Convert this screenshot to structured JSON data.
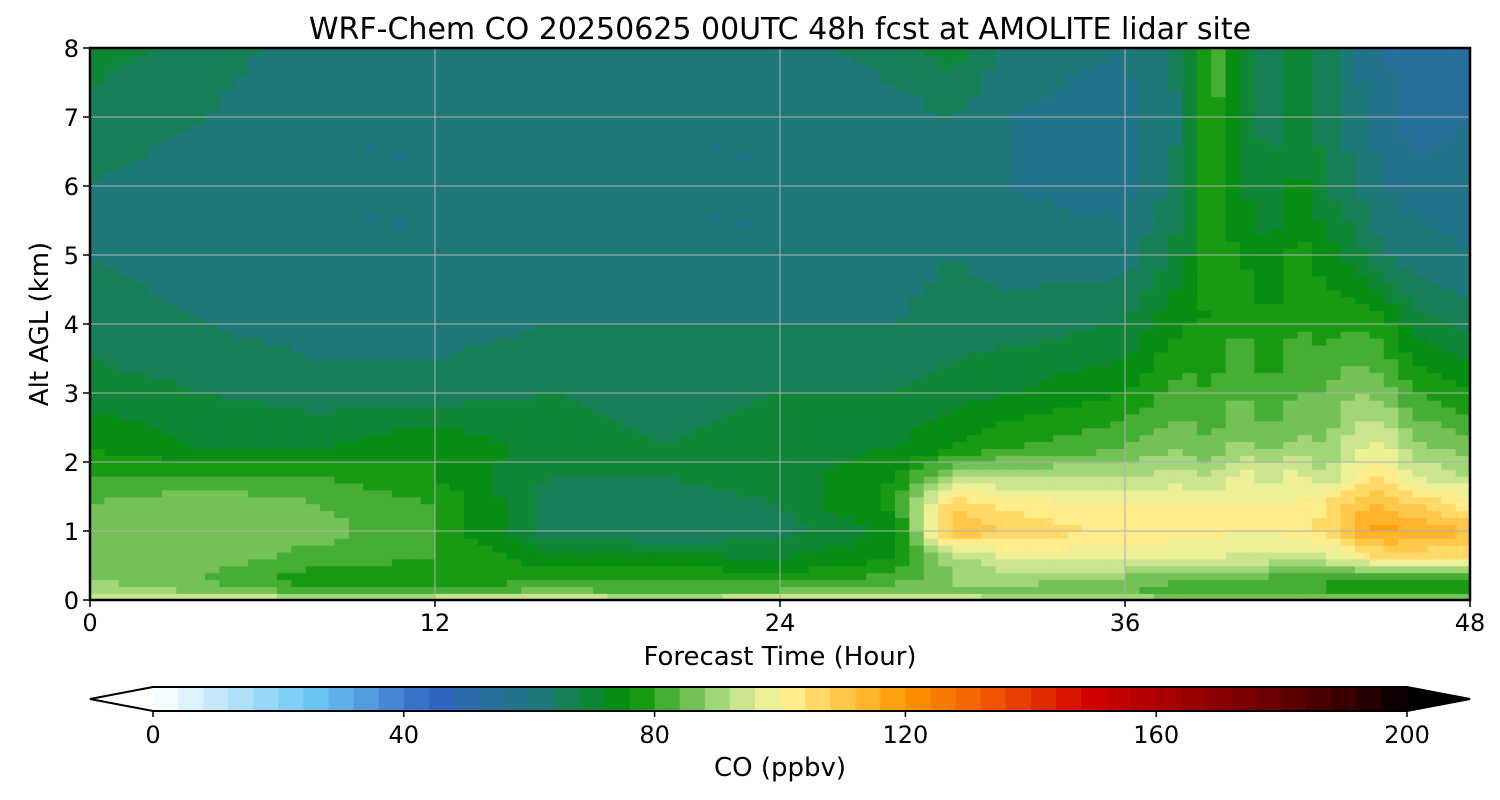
{
  "chart_data": {
    "type": "heatmap",
    "title": "WRF-Chem CO  20250625 00UTC 48h fcst at AMOLITE lidar site",
    "xlabel": "Forecast Time (Hour)",
    "ylabel": "Alt AGL (km)",
    "xlim": [
      0,
      48
    ],
    "ylim": [
      0,
      8
    ],
    "xticks": [
      0,
      12,
      24,
      36,
      48
    ],
    "yticks": [
      0,
      1,
      2,
      3,
      4,
      5,
      6,
      7,
      8
    ],
    "grid": true,
    "colorbar": {
      "label": "CO  (ppbv)",
      "range": [
        0,
        200
      ],
      "ticks": [
        0,
        40,
        80,
        120,
        160,
        200
      ],
      "extend": "both",
      "orientation": "horizontal",
      "colors": [
        {
          "v": 0,
          "c": "#ffffff"
        },
        {
          "v": 25,
          "c": "#6ec8f5"
        },
        {
          "v": 45,
          "c": "#3064c0"
        },
        {
          "v": 62,
          "c": "#1e7878"
        },
        {
          "v": 76,
          "c": "#029002"
        },
        {
          "v": 92,
          "c": "#b8e088"
        },
        {
          "v": 100,
          "c": "#fff59a"
        },
        {
          "v": 110,
          "c": "#ffc848"
        },
        {
          "v": 120,
          "c": "#ff9600"
        },
        {
          "v": 135,
          "c": "#ee5000"
        },
        {
          "v": 150,
          "c": "#d00000"
        },
        {
          "v": 170,
          "c": "#8a0000"
        },
        {
          "v": 190,
          "c": "#3a0000"
        },
        {
          "v": 200,
          "c": "#000000"
        }
      ]
    },
    "x": [
      0,
      4,
      8,
      12,
      16,
      20,
      24,
      28,
      30,
      32,
      36,
      38,
      39,
      40,
      41,
      42,
      43,
      44,
      45,
      46,
      48
    ],
    "y": [
      0,
      0.1,
      0.3,
      0.6,
      1.0,
      1.4,
      1.8,
      2.2,
      3.0,
      4.0,
      5.0,
      6.0,
      7.0,
      8.0
    ],
    "z": [
      [
        100,
        100,
        98,
        100,
        100,
        98,
        100,
        100,
        98,
        96,
        94,
        92,
        92,
        92,
        92,
        92,
        92,
        92,
        92,
        92,
        92
      ],
      [
        92,
        88,
        84,
        84,
        86,
        84,
        86,
        88,
        88,
        86,
        84,
        82,
        82,
        80,
        80,
        80,
        80,
        80,
        80,
        80,
        80
      ],
      [
        88,
        84,
        76,
        76,
        80,
        80,
        78,
        82,
        88,
        90,
        86,
        84,
        84,
        84,
        82,
        80,
        80,
        78,
        78,
        78,
        78
      ],
      [
        86,
        86,
        82,
        80,
        74,
        74,
        72,
        76,
        90,
        96,
        98,
        96,
        96,
        94,
        94,
        94,
        94,
        98,
        104,
        104,
        104
      ],
      [
        84,
        86,
        86,
        80,
        66,
        64,
        66,
        74,
        112,
        108,
        102,
        102,
        102,
        100,
        100,
        102,
        106,
        114,
        118,
        116,
        112
      ],
      [
        84,
        88,
        84,
        80,
        66,
        66,
        68,
        78,
        108,
        102,
        100,
        100,
        100,
        100,
        100,
        100,
        104,
        110,
        112,
        108,
        102
      ],
      [
        80,
        80,
        80,
        76,
        68,
        68,
        70,
        76,
        90,
        92,
        92,
        94,
        92,
        98,
        94,
        98,
        92,
        100,
        104,
        96,
        92
      ],
      [
        76,
        72,
        72,
        76,
        70,
        68,
        70,
        72,
        76,
        80,
        84,
        88,
        84,
        90,
        86,
        90,
        88,
        96,
        98,
        90,
        86
      ],
      [
        70,
        68,
        66,
        66,
        68,
        66,
        68,
        68,
        70,
        72,
        76,
        82,
        80,
        84,
        80,
        84,
        84,
        88,
        86,
        80,
        76
      ],
      [
        66,
        64,
        62,
        62,
        64,
        64,
        64,
        64,
        66,
        66,
        68,
        76,
        76,
        80,
        76,
        80,
        78,
        80,
        78,
        70,
        66
      ],
      [
        64,
        62,
        60,
        60,
        60,
        60,
        60,
        62,
        64,
        62,
        62,
        70,
        78,
        76,
        72,
        78,
        74,
        70,
        64,
        62,
        60
      ],
      [
        64,
        62,
        60,
        60,
        62,
        60,
        60,
        62,
        64,
        60,
        58,
        66,
        80,
        72,
        68,
        74,
        68,
        64,
        60,
        58,
        58
      ],
      [
        66,
        64,
        60,
        60,
        60,
        60,
        60,
        62,
        64,
        60,
        58,
        64,
        82,
        72,
        66,
        70,
        66,
        62,
        58,
        54,
        56
      ],
      [
        70,
        66,
        62,
        62,
        62,
        62,
        62,
        66,
        70,
        62,
        60,
        66,
        84,
        72,
        66,
        74,
        66,
        60,
        56,
        54,
        56
      ]
    ]
  }
}
